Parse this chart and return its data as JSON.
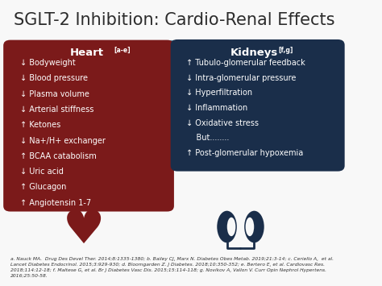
{
  "title": "SGLT-2 Inhibition: Cardio-Renal Effects",
  "title_fontsize": 15,
  "bg_color": "#f8f8f8",
  "heart_box_color": "#7B1A1A",
  "kidney_box_color": "#1a2e4a",
  "heart_header": "Heart",
  "heart_superscript": "[a-e]",
  "kidney_header": "Kidneys",
  "kidney_superscript": "[f,g]",
  "heart_items": [
    "↓ Bodyweight",
    "↓ Blood pressure",
    "↓ Plasma volume",
    "↓ Arterial stiffness",
    "↑ Ketones",
    "↓ Na+/H+ exchanger",
    "↑ BCAA catabolism",
    "↓ Uric acid",
    "↑ Glucagon",
    "↑ Angiotensin 1-7"
  ],
  "kidney_items": [
    "↑ Tubulo-glomerular feedback",
    "↓ Intra-glomerular pressure",
    "↓ Hyperfiltration",
    "↓ Inflammation",
    "↓ Oxidative stress",
    "    But........",
    "↑ Post-glomerular hypoxemia"
  ],
  "footer_text": "a. Nauck MA.  Drug Des Devel Ther. 2014;8:1335-1380; b. Bailey CJ, Marx N. Diabetes Obes Metab. 2019;21:3-14; c. Ceriello A,  et al.\nLancet Diabetes Endocrinol. 2015;3:929-930; d. Bloomgarden Z. J Diabetes. 2018;10:350-352; e. Bertero E, et al. Cardiovasc Res.\n2018;114:12-18; f. Maltese G, et al. Br J Diabetes Vasc Dis. 2015;15:114-118; g. Novikov A, Vallon V. Curr Opin Nephrol Hypertens.\n2016;25:50-58.",
  "text_color_white": "#ffffff",
  "text_color_dark": "#2c2c2c",
  "separator_color": "#5a9bb0",
  "heart_color": "#7B1A1A",
  "kidney_color": "#1a2e4a"
}
